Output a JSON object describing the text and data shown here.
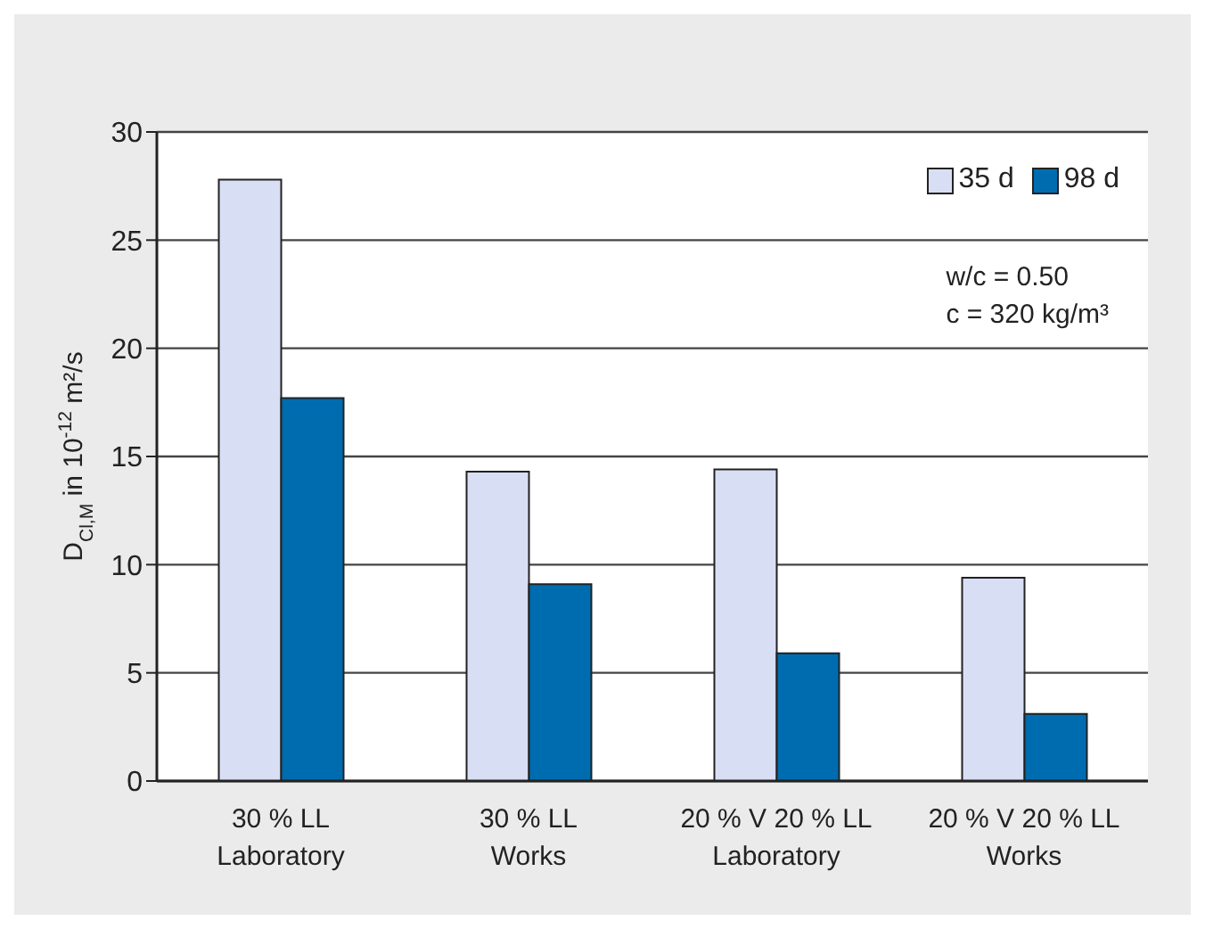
{
  "chart_data": {
    "type": "bar",
    "ylabel": "D$_{Cl,M}$ in 10$^{-12}$ m²/s",
    "categories": [
      "30 % LL\nLaboratory",
      "30 % LL\nWorks",
      "20 % V 20 % LL\nLaboratory",
      "20 % V 20 % LL\nWorks"
    ],
    "series": [
      {
        "name": "35 d",
        "color": "#d8dff5",
        "values": [
          27.8,
          14.3,
          14.4,
          9.4
        ]
      },
      {
        "name": "98 d",
        "color": "#006cb0",
        "values": [
          17.7,
          9.1,
          5.9,
          3.1
        ]
      }
    ],
    "ylim": [
      0,
      30
    ],
    "yticks": [
      0,
      5,
      10,
      15,
      20,
      25,
      30
    ],
    "grid": "y",
    "legend": "top right",
    "annotations": [
      "w/c = 0.50",
      "c = 320 kg/m³"
    ]
  }
}
